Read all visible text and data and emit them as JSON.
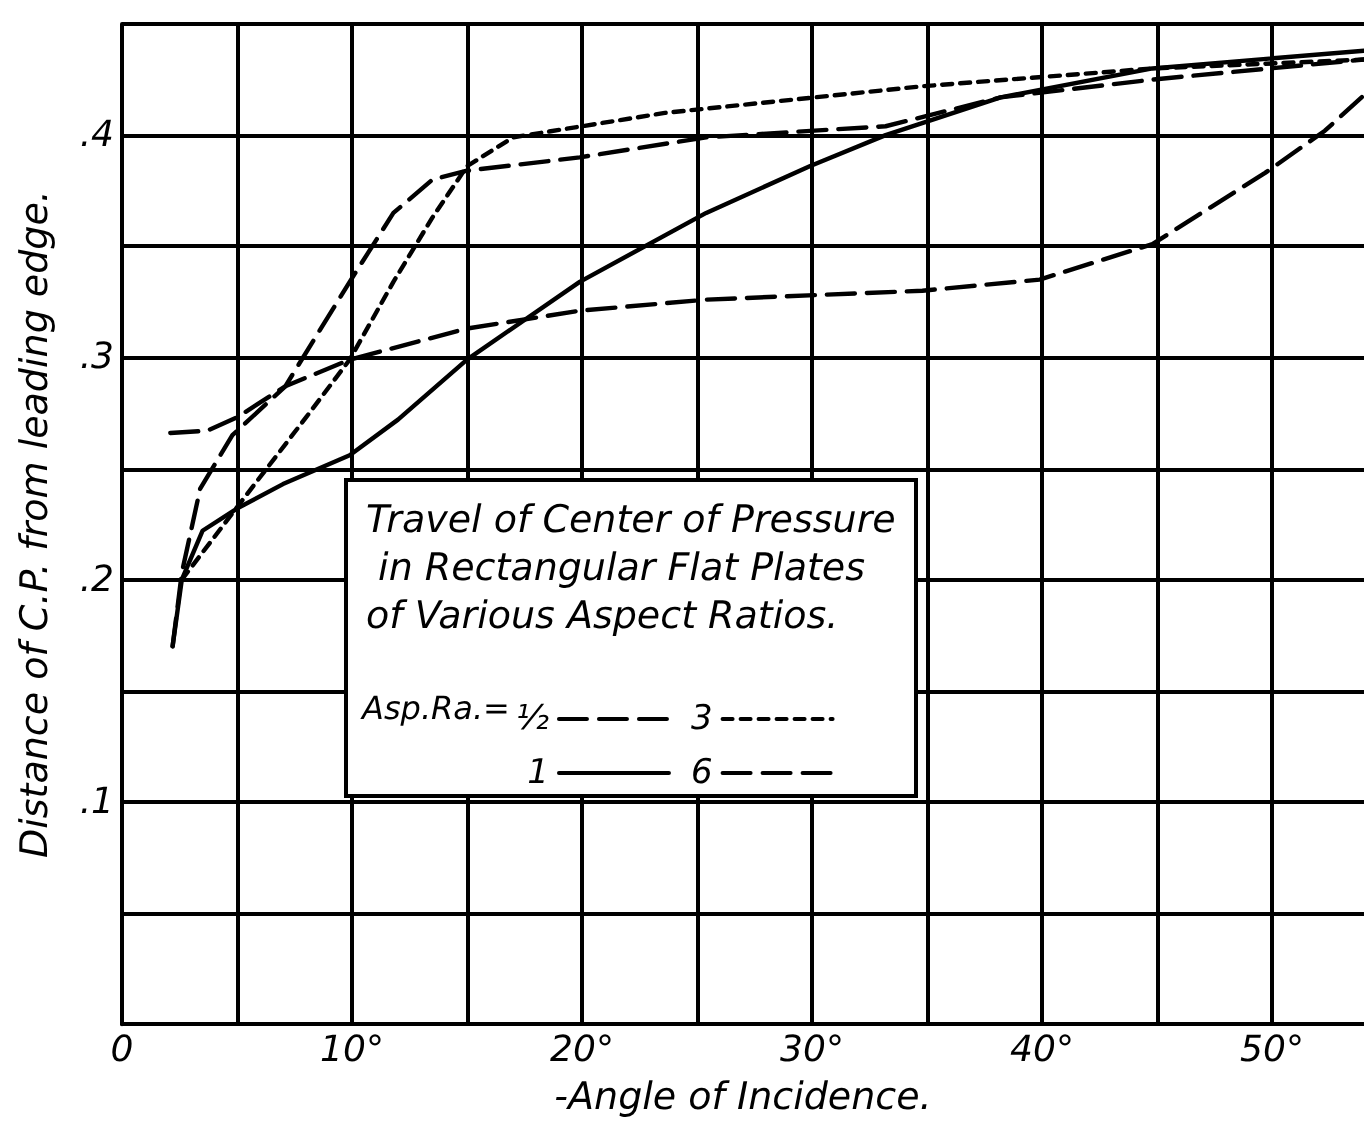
{
  "chart_data": {
    "type": "line",
    "title": "Travel of Center of Pressure in Rectangular Flat Plates of Various Aspect Ratios.",
    "xlabel": "-Angle of Incidence.",
    "ylabel": "Distance of C.P. from leading edge.",
    "legend_title": "Asp.Ra.=",
    "legend": "left",
    "grid": true,
    "marker": "none",
    "xlim": [
      0,
      54
    ],
    "xticks": [
      0,
      {
        "value": 5,
        "label": null
      },
      {
        "value": 10,
        "label": "10°"
      },
      {
        "value": 15,
        "label": null
      },
      {
        "value": 20,
        "label": "20°"
      },
      {
        "value": 25,
        "label": null
      },
      {
        "value": 30,
        "label": "30°"
      },
      {
        "value": 35,
        "label": null
      },
      {
        "value": 40,
        "label": "40°"
      },
      {
        "value": 45,
        "label": null
      },
      {
        "value": 50,
        "label": "50°"
      }
    ],
    "ylim": [
      0,
      0.45
    ],
    "yticks": [
      {
        "value": 0,
        "label": null
      },
      {
        "value": 0.05,
        "label": null
      },
      {
        "value": 0.1,
        "label": ".1"
      },
      {
        "value": 0.15,
        "label": null
      },
      {
        "value": 0.2,
        "label": ".2"
      },
      {
        "value": 0.25,
        "label": null
      },
      {
        "value": 0.3,
        "label": ".3"
      },
      {
        "value": 0.35,
        "label": null
      },
      {
        "value": 0.4,
        "label": ".4"
      },
      {
        "value": 0.45,
        "label": null
      }
    ],
    "series": [
      {
        "name": "½",
        "color": "#000000",
        "line_style": "dashed",
        "x": [
          2.1,
          3.7,
          5,
          7.1,
          9.9,
          15,
          19.9,
          25.4,
          34.8,
          39.9,
          44.8,
          49.7,
          52.3,
          54
        ],
        "values": [
          0.266,
          0.267,
          0.273,
          0.287,
          0.299,
          0.313,
          0.321,
          0.326,
          0.33,
          0.335,
          0.351,
          0.383,
          0.402,
          0.418
        ]
      },
      {
        "name": "3",
        "color": "#000000",
        "line_style": "dotted",
        "x": [
          2.6,
          5.4,
          8,
          9.9,
          11.8,
          13.5,
          15,
          17,
          23.6,
          34.8,
          44.8,
          54
        ],
        "values": [
          0.2,
          0.238,
          0.273,
          0.299,
          0.334,
          0.363,
          0.386,
          0.399,
          0.41,
          0.422,
          0.43,
          0.434
        ]
      },
      {
        "name": "1",
        "color": "#000000",
        "line_style": "solid",
        "x": [
          2.2,
          2.6,
          3.5,
          5,
          7,
          9.9,
          12,
          15,
          19.9,
          25.4,
          29.9,
          33.2,
          38.2,
          44.8,
          54
        ],
        "values": [
          0.17,
          0.2,
          0.222,
          0.232,
          0.243,
          0.256,
          0.272,
          0.299,
          0.334,
          0.365,
          0.386,
          0.4,
          0.417,
          0.43,
          0.438
        ]
      },
      {
        "name": "6",
        "color": "#000000",
        "line_style": "dashed",
        "x": [
          2.2,
          2.6,
          3.4,
          4.8,
          7.1,
          9.9,
          11.8,
          13.5,
          15,
          19.9,
          25.4,
          33.2,
          38.2,
          44.8,
          54
        ],
        "values": [
          0.17,
          0.203,
          0.241,
          0.265,
          0.287,
          0.334,
          0.365,
          0.38,
          0.384,
          0.39,
          0.399,
          0.404,
          0.417,
          0.425,
          0.434
        ]
      }
    ]
  }
}
